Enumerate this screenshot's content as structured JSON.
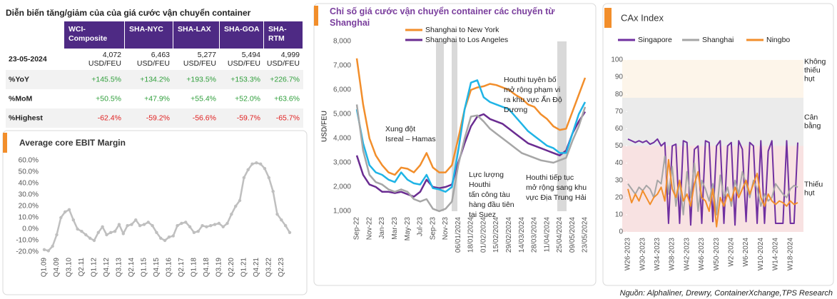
{
  "table": {
    "title": "Diễn biến tăng/giảm của của giá cước vận chuyển container",
    "header": [
      [
        "WCI-",
        "Composite"
      ],
      [
        "SHA-NYC"
      ],
      [
        "SHA-LAX"
      ],
      [
        "SHA-GOA"
      ],
      [
        "SHA-",
        "RTM"
      ]
    ],
    "rows": [
      {
        "label": "23-05-2024",
        "cells": [
          [
            "4,072",
            "USD/FEU"
          ],
          [
            "6,463",
            "USD/FEU"
          ],
          [
            "5,277",
            "USD/FEU"
          ],
          [
            "5,494",
            "USD/FEU"
          ],
          [
            "4,999",
            "USD/FEU"
          ]
        ]
      },
      {
        "label": "%YoY",
        "cells": [
          [
            "+145.5%"
          ],
          [
            "+134.2%"
          ],
          [
            "+193.5%"
          ],
          [
            "+153.3%"
          ],
          [
            "+226.7%"
          ]
        ]
      },
      {
        "label": "%MoM",
        "cells": [
          [
            "+50.5%"
          ],
          [
            "+47.9%"
          ],
          [
            "+55.4%"
          ],
          [
            "+52.0%"
          ],
          [
            "+63.6%"
          ]
        ]
      },
      {
        "label": "%Highest",
        "cells": [
          [
            "-62.4%"
          ],
          [
            "-59.2%"
          ],
          [
            "-56.6%"
          ],
          [
            "-59.7%"
          ],
          [
            "-65.7%"
          ]
        ]
      }
    ]
  },
  "chart_data": [
    {
      "type": "line",
      "title": "Average core EBIT Margin",
      "categories": [
        "Q1.09",
        null,
        null,
        "Q4.09",
        null,
        null,
        "Q3.10",
        null,
        null,
        "Q2.11",
        null,
        null,
        "Q1.12",
        null,
        null,
        "Q4.12",
        null,
        null,
        "Q3.13",
        null,
        null,
        "Q2.14",
        null,
        null,
        "Q1.15",
        null,
        null,
        "Q4.15",
        null,
        null,
        "Q3.16",
        null,
        null,
        "Q2.17",
        null,
        null,
        "Q1.18",
        null,
        null,
        "Q4.18",
        null,
        null,
        "Q3.19",
        null,
        null,
        "Q2.20",
        null,
        null,
        "Q1.21",
        null,
        null,
        "Q4.21",
        null,
        null,
        "Q3.22",
        null,
        null,
        "Q2.23",
        null,
        null
      ],
      "series": [
        {
          "color": "#bfbfbf",
          "values": [
            -18,
            -19,
            -15,
            -5,
            10,
            15,
            17,
            8,
            0,
            -2,
            -5,
            -8,
            -10,
            -3,
            2,
            -5,
            -3,
            -2,
            4,
            -4,
            3,
            4,
            8,
            3,
            4,
            6,
            3,
            -3,
            -8,
            -10,
            -7,
            -6,
            3,
            5,
            6,
            2,
            -3,
            -2,
            3,
            2,
            3,
            4,
            5,
            2,
            5,
            13,
            20,
            25,
            45,
            52,
            57,
            58,
            57,
            53,
            45,
            33,
            13,
            8,
            3,
            -3
          ]
        }
      ],
      "markers": true,
      "ylim": [
        -20,
        60
      ],
      "yticks": [
        {
          "value": -20,
          "label": "-20.0%"
        },
        {
          "value": -10,
          "label": "-10.0%"
        },
        {
          "value": 0,
          "label": "0.0%"
        },
        {
          "value": 10,
          "label": "10.0%"
        },
        {
          "value": 20,
          "label": "20.0%"
        },
        {
          "value": 30,
          "label": "30.0%"
        },
        {
          "value": 40,
          "label": "40.0%"
        },
        {
          "value": 50,
          "label": "50.0%"
        },
        {
          "value": 60,
          "label": "60.0%"
        }
      ]
    },
    {
      "type": "line",
      "title": "Chỉ số giá cước vận chuyển container các chuyến từ Shanghai",
      "y_label": "USD/FEU",
      "categories": [
        "Sep-22",
        null,
        "Nov-22",
        null,
        "Jan-23",
        null,
        "Mar-23",
        null,
        "May-23",
        null,
        "Jul-23",
        null,
        "Sep-23",
        null,
        "Nov-23",
        null,
        "06/01/2024",
        null,
        "18/01/2024",
        null,
        "01/02/2024",
        null,
        "15/02/2024",
        null,
        "29/02/2024",
        null,
        "14/03/2024",
        null,
        "28/03/2024",
        null,
        "11/04/2024",
        null,
        "25/04/2024",
        null,
        "09/05/2024",
        null,
        "23/05/2024"
      ],
      "series": [
        {
          "name": "Shanghai to New York",
          "color": "#f28e2b",
          "values": [
            7300,
            5400,
            4000,
            3300,
            2900,
            2600,
            2500,
            2800,
            2750,
            2600,
            2900,
            3400,
            2800,
            2600,
            2600,
            2900,
            4000,
            5200,
            6000,
            6100,
            6150,
            6250,
            6200,
            6100,
            6000,
            5800,
            5650,
            5400,
            5300,
            5000,
            4800,
            4500,
            4350,
            4400,
            5100,
            5800,
            6500
          ]
        },
        {
          "name": "Shanghai to Los Angeles",
          "color": "#6a2c91",
          "values": [
            3300,
            2500,
            2100,
            2000,
            1800,
            1800,
            1750,
            1800,
            1700,
            1600,
            1800,
            2300,
            2000,
            1950,
            2000,
            2100,
            3000,
            3800,
            4500,
            4900,
            5000,
            4800,
            4700,
            4600,
            4400,
            4200,
            4000,
            3800,
            3700,
            3600,
            3500,
            3400,
            3300,
            3500,
            4200,
            4700,
            5100
          ]
        },
        {
          "color": "#1fb4e6",
          "values": [
            5200,
            3800,
            2900,
            2600,
            2500,
            2300,
            2200,
            2600,
            2300,
            2150,
            2100,
            2500,
            1950,
            1900,
            1800,
            2000,
            3500,
            5200,
            6300,
            6400,
            5700,
            5500,
            5400,
            5300,
            5200,
            4900,
            4600,
            4300,
            4100,
            3900,
            3700,
            3600,
            3400,
            3400,
            4200,
            5000,
            5500
          ]
        },
        {
          "color": "#a6a6a6",
          "values": [
            5400,
            3500,
            2500,
            2200,
            2100,
            1900,
            1800,
            1900,
            1800,
            1500,
            1400,
            1500,
            1100,
            1000,
            1100,
            1400,
            2900,
            4000,
            4900,
            4950,
            4700,
            4400,
            4200,
            4000,
            3800,
            3600,
            3400,
            3300,
            3200,
            3100,
            3050,
            3000,
            3100,
            3200,
            3900,
            4500,
            5300
          ]
        }
      ],
      "annotations": [
        [
          "Xung đột",
          "Isreal – Hamas"
        ],
        [
          "Lực lượng",
          "Houthi",
          "tấn công tàu",
          "hàng đầu tiên",
          "tại Suez"
        ],
        [
          "Houthi tuyên bố",
          "mở rộng phạm vi",
          "ra khu vực Ấn Độ",
          "Dương"
        ],
        [
          "Houthi tiếp tục",
          "mở rộng sang khu",
          "vực Địa Trung Hải"
        ]
      ],
      "ylim": [
        1000,
        8000
      ],
      "yticks": [
        {
          "value": 1000,
          "label": "1,000"
        },
        {
          "value": 2000,
          "label": "2,000"
        },
        {
          "value": 3000,
          "label": "3,000"
        },
        {
          "value": 4000,
          "label": "4,000"
        },
        {
          "value": 5000,
          "label": "5,000"
        },
        {
          "value": 6000,
          "label": "6,000"
        },
        {
          "value": 7000,
          "label": "7,000"
        },
        {
          "value": 8000,
          "label": "8,000"
        }
      ]
    },
    {
      "type": "line",
      "title": "CAx Index",
      "categories": [
        "W26-2023",
        null,
        null,
        null,
        "W30-2023",
        null,
        null,
        null,
        "W34-2023",
        null,
        null,
        null,
        "W38-2023",
        null,
        null,
        null,
        "W42-2023",
        null,
        null,
        null,
        "W46-2023",
        null,
        null,
        null,
        "W50-2023",
        null,
        null,
        null,
        "W2-2024",
        null,
        null,
        null,
        "W6-2024",
        null,
        null,
        null,
        "W10-2024",
        null,
        null,
        null,
        "W14-2024",
        null,
        null,
        null,
        "W18-2024",
        null,
        null
      ],
      "series": [
        {
          "name": "Singapore",
          "color": "#7030a0",
          "values": [
            54,
            53,
            52,
            53,
            52,
            53,
            51,
            52,
            54,
            50,
            52,
            5,
            50,
            51,
            5,
            53,
            52,
            4,
            48,
            50,
            5,
            53,
            52,
            6,
            50,
            53,
            5,
            50,
            52,
            4,
            53,
            48,
            6,
            52,
            50,
            5,
            53,
            5,
            47,
            53,
            5,
            5,
            5,
            53,
            5,
            5,
            52
          ]
        },
        {
          "name": "Shanghai",
          "color": "#a6a6a6",
          "values": [
            28,
            25,
            22,
            26,
            24,
            27,
            25,
            20,
            30,
            28,
            44,
            22,
            38,
            15,
            30,
            10,
            35,
            20,
            40,
            12,
            30,
            25,
            18,
            28,
            10,
            33,
            20,
            26,
            15,
            30,
            22,
            35,
            28,
            20,
            30,
            25,
            15,
            22,
            18,
            20,
            28,
            25,
            22,
            20,
            25,
            27,
            26
          ]
        },
        {
          "name": "Ningbo",
          "color": "#f28e2b",
          "values": [
            25,
            17,
            22,
            18,
            24,
            20,
            16,
            20,
            22,
            26,
            18,
            42,
            25,
            20,
            30,
            18,
            22,
            15,
            28,
            35,
            20,
            18,
            12,
            25,
            3,
            20,
            15,
            22,
            18,
            26,
            20,
            25,
            30,
            22,
            28,
            34,
            20,
            15,
            22,
            18,
            16,
            18,
            17,
            15,
            18,
            16,
            17
          ]
        }
      ],
      "zones": [
        {
          "label": [
            "Không",
            "thiếu",
            "hụt"
          ],
          "from": 78,
          "to": 100,
          "color": "#fdf5ea"
        },
        {
          "label": [
            "Cân",
            "bằng"
          ],
          "from": 50,
          "to": 78,
          "color": "#ebebeb"
        },
        {
          "label": [
            "Thiếu",
            "hụt"
          ],
          "from": 0,
          "to": 50,
          "color": "#f8e2e2"
        }
      ],
      "ylim": [
        0,
        100
      ],
      "yticks": [
        0,
        10,
        20,
        30,
        40,
        50,
        60,
        70,
        80,
        90,
        100
      ]
    }
  ],
  "source": "Nguồn: Alphaliner, Drewry, ContainerXchange,TPS Research"
}
